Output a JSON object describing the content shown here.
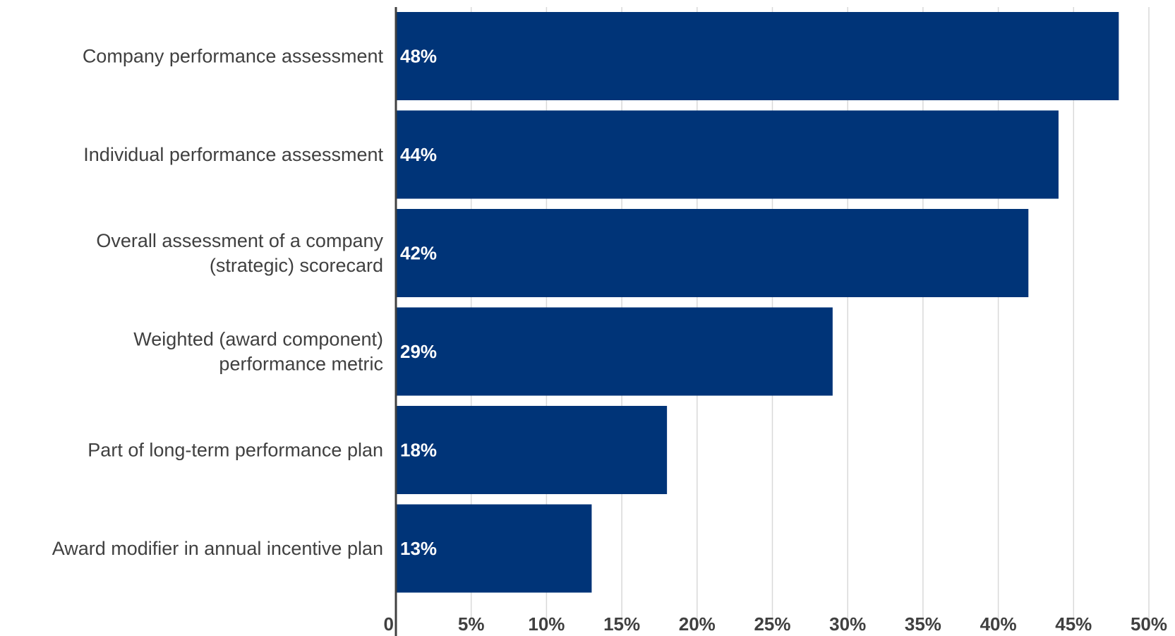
{
  "chart_data": {
    "type": "bar",
    "orientation": "horizontal",
    "categories": [
      [
        "Company performance assessment"
      ],
      [
        "Individual performance assessment"
      ],
      [
        "Overall assessment of a company",
        "(strategic) scorecard"
      ],
      [
        "Weighted (award component)",
        "performance metric"
      ],
      [
        "Part of long-term performance plan"
      ],
      [
        "Award modifier in annual incentive plan"
      ]
    ],
    "values": [
      48,
      44,
      42,
      29,
      18,
      13
    ],
    "value_labels": [
      "48%",
      "44%",
      "42%",
      "29%",
      "18%",
      "13%"
    ],
    "xlim": [
      0,
      50
    ],
    "x_ticks": [
      0,
      5,
      10,
      15,
      20,
      25,
      30,
      35,
      40,
      45,
      50
    ],
    "x_tick_labels": [
      "0",
      "5%",
      "10%",
      "15%",
      "20%",
      "25%",
      "30%",
      "35%",
      "40%",
      "45%",
      "50%"
    ],
    "title": "",
    "xlabel": "",
    "ylabel": "",
    "grid": true,
    "legend": "none",
    "colors": {
      "bar": "#003478",
      "grid": "#d9d9d9",
      "axis": "#404040",
      "label_text": "#404040",
      "bar_text": "#ffffff"
    }
  }
}
